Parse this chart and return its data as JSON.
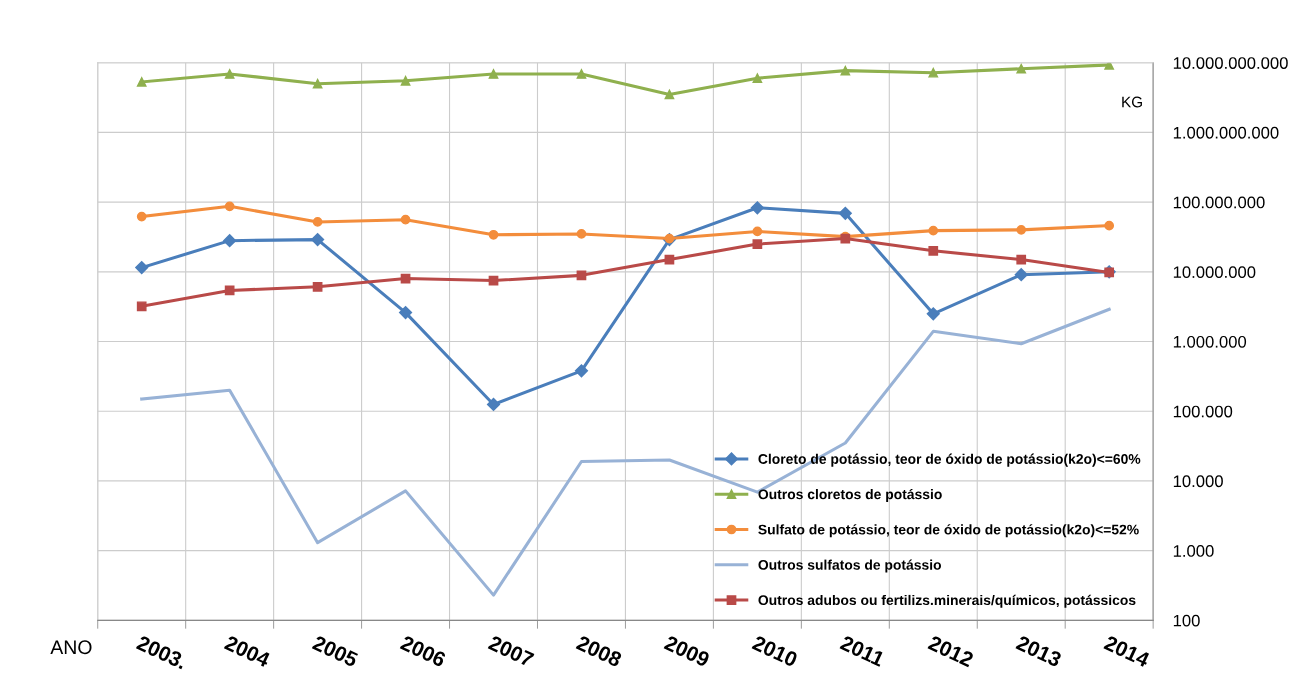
{
  "chart_data": {
    "type": "line",
    "xlabel": "ANO",
    "ylabel": "KG",
    "categories": [
      "2003.",
      "2004",
      "2005",
      "2006",
      "2007",
      "2008",
      "2009",
      "2010",
      "2011",
      "2012",
      "2013",
      "2014"
    ],
    "series": [
      {
        "name": "Cloreto de potássio, teor de óxido de potássio(k2o)<=60%",
        "color": "#4a7ebb",
        "marker": "diamond",
        "values": [
          11500000,
          28000000,
          29000000,
          2600000,
          125000,
          380000,
          29000000,
          83000000,
          69000000,
          2500000,
          9100000,
          10000000
        ]
      },
      {
        "name": "Outros cloretos de potássio",
        "color": "#8fb04e",
        "marker": "triangle",
        "values": [
          5300000000,
          6900000000,
          5000000000,
          5500000000,
          6900000000,
          6900000000,
          3500000000,
          6000000000,
          7700000000,
          7200000000,
          8200000000,
          9300000000
        ]
      },
      {
        "name": "Sulfato de potássio, teor de óxido de potássio(k2o)<=52%",
        "color": "#f38d3c",
        "marker": "circle",
        "values": [
          62000000,
          87000000,
          52000000,
          56000000,
          34000000,
          35000000,
          30000000,
          38000000,
          32000000,
          39000000,
          40000000,
          46000000
        ]
      },
      {
        "name": "Outros sulfatos de potássio",
        "color": "#98b2d6",
        "marker": "none",
        "values": [
          150000,
          200000,
          1300,
          7200,
          230,
          19000,
          20000,
          6900,
          35000,
          1400000,
          930000,
          2900000
        ]
      },
      {
        "name": "Outros adubos ou fertilizs.minerais/químicos, potássicos",
        "color": "#b94a48",
        "marker": "square",
        "values": [
          3200000,
          5400000,
          6100000,
          8000000,
          7500000,
          8900000,
          15000000,
          25000000,
          30000000,
          20000000,
          15000000,
          9800000
        ]
      }
    ],
    "log": "y",
    "ylim": [
      100,
      10000000000
    ],
    "yticks": [
      {
        "value": 100,
        "label": "100"
      },
      {
        "value": 1000,
        "label": "1.000"
      },
      {
        "value": 10000,
        "label": "10.000"
      },
      {
        "value": 100000,
        "label": "100.000"
      },
      {
        "value": 1000000,
        "label": "1.000.000"
      },
      {
        "value": 10000000,
        "label": "10.000.000"
      },
      {
        "value": 100000000,
        "label": "100.000.000"
      },
      {
        "value": 1000000000,
        "label": "1.000.000.000"
      },
      {
        "value": 10000000000,
        "label": "10.000.000.000"
      }
    ],
    "grid": true,
    "legend": "lower right",
    "line_style": "solid"
  }
}
